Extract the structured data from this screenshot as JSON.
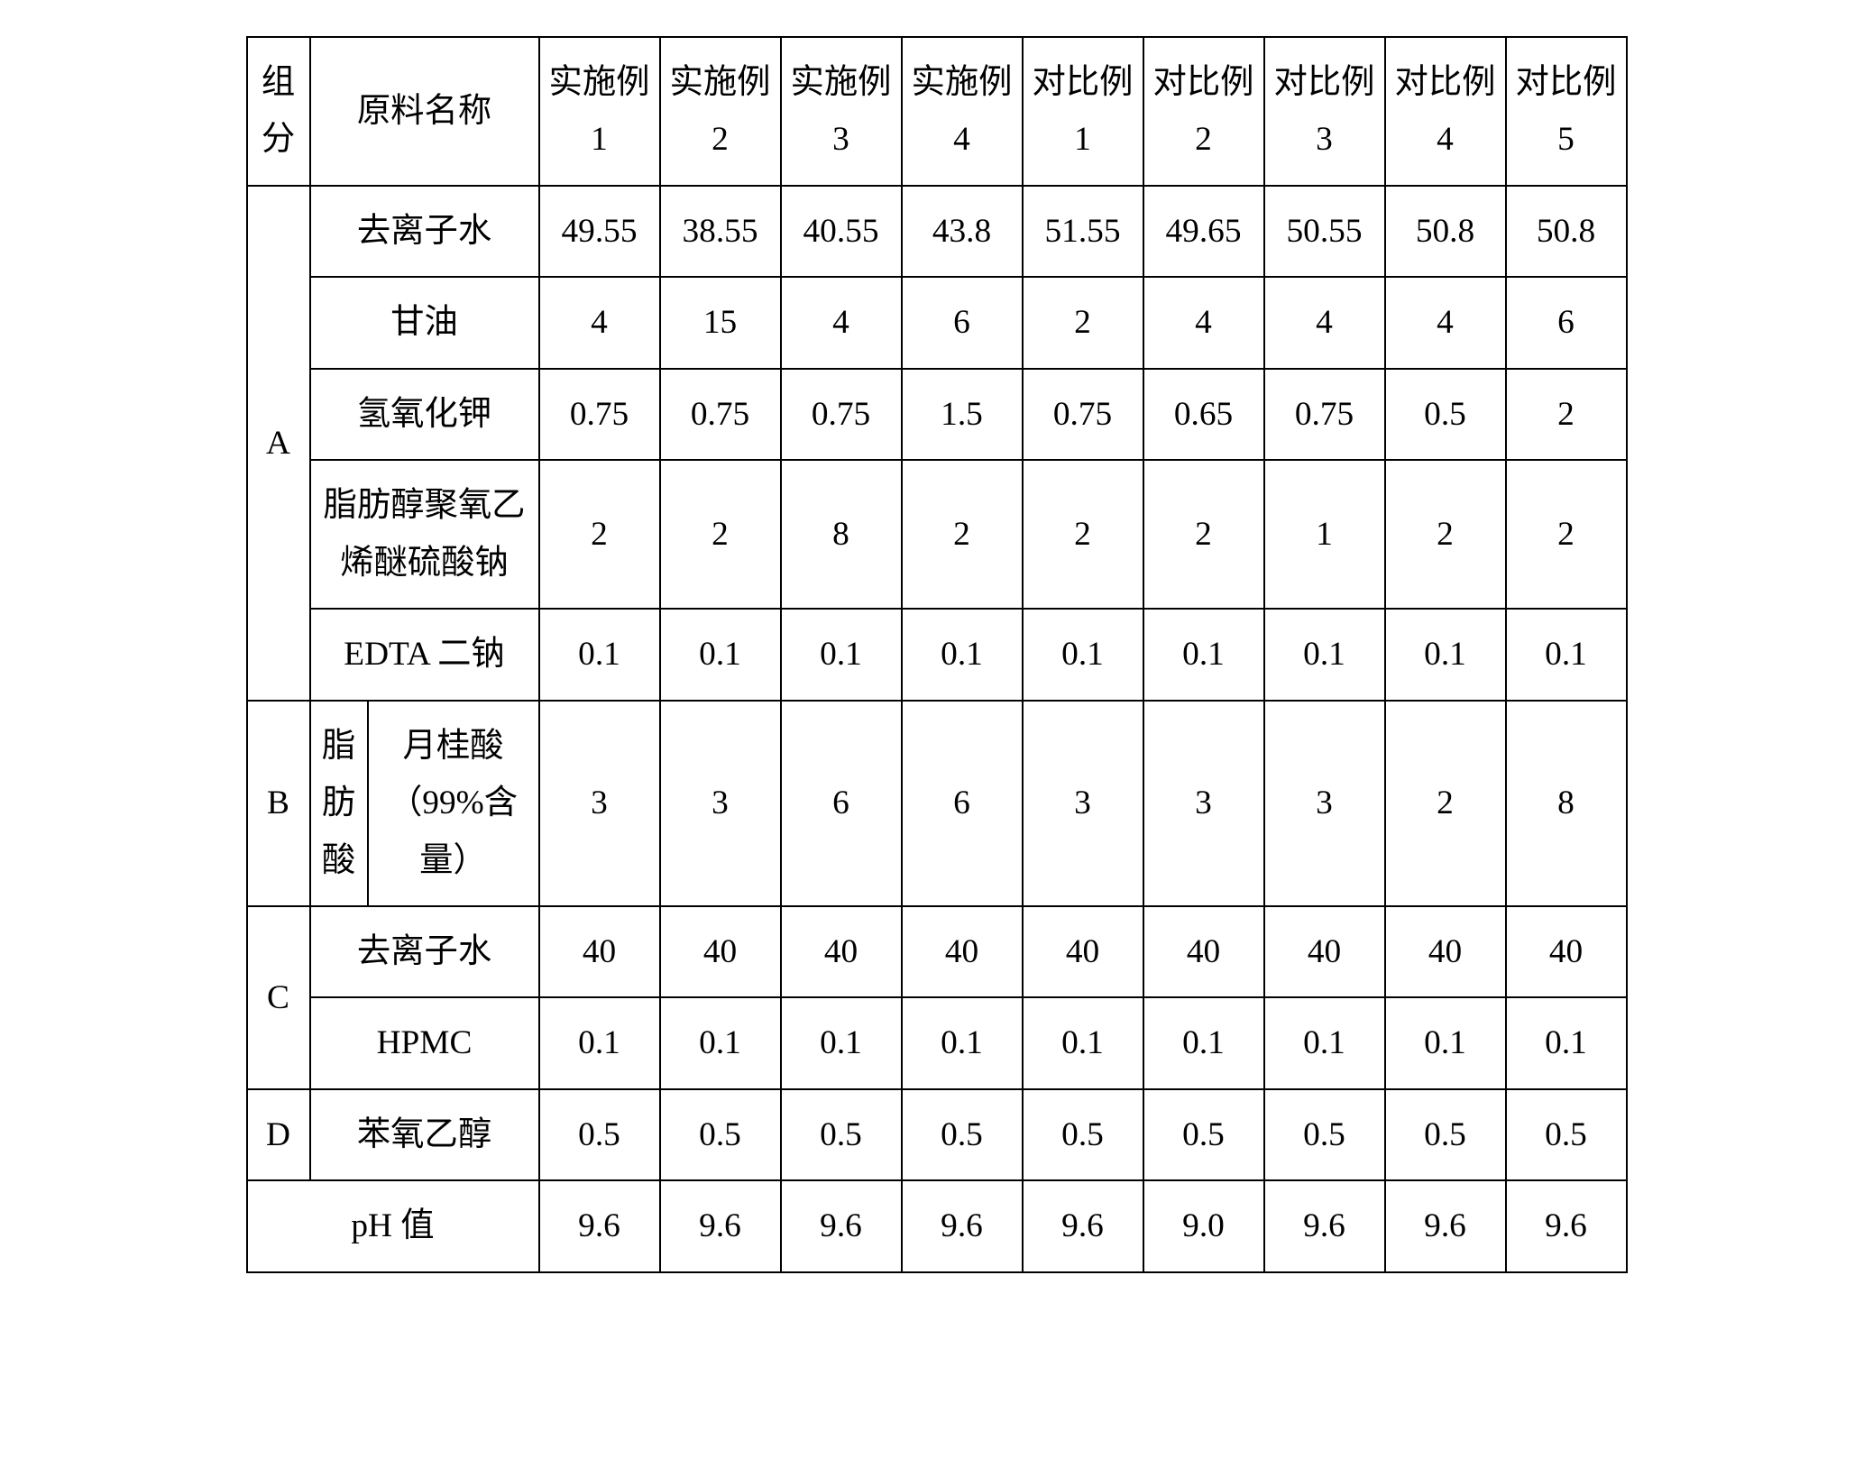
{
  "font": {
    "size_pt": 28,
    "line_height": 1.7,
    "color": "#000000"
  },
  "border_color": "#000000",
  "background_color": "#ffffff",
  "header": {
    "group": "组分",
    "ingredient": "原料名称",
    "cols": [
      "实施例 1",
      "实施例 2",
      "实施例 3",
      "实施例 4",
      "对比例 1",
      "对比例 2",
      "对比例 3",
      "对比例 4",
      "对比例 5"
    ]
  },
  "rows": [
    {
      "group": "A",
      "ingredient": "去离子水",
      "values": [
        "49.55",
        "38.55",
        "40.55",
        "43.8",
        "51.55",
        "49.65",
        "50.55",
        "50.8",
        "50.8"
      ]
    },
    {
      "group": "A",
      "ingredient": "甘油",
      "values": [
        "4",
        "15",
        "4",
        "6",
        "2",
        "4",
        "4",
        "4",
        "6"
      ]
    },
    {
      "group": "A",
      "ingredient": "氢氧化钾",
      "values": [
        "0.75",
        "0.75",
        "0.75",
        "1.5",
        "0.75",
        "0.65",
        "0.75",
        "0.5",
        "2"
      ]
    },
    {
      "group": "A",
      "ingredient": "脂肪醇聚氧乙烯醚硫酸钠",
      "values": [
        "2",
        "2",
        "8",
        "2",
        "2",
        "2",
        "1",
        "2",
        "2"
      ]
    },
    {
      "group": "A",
      "ingredient": "EDTA 二钠",
      "values": [
        "0.1",
        "0.1",
        "0.1",
        "0.1",
        "0.1",
        "0.1",
        "0.1",
        "0.1",
        "0.1"
      ]
    },
    {
      "group": "B",
      "sublabel": "脂肪酸",
      "ingredient": "月桂酸（99%含量）",
      "values": [
        "3",
        "3",
        "6",
        "6",
        "3",
        "3",
        "3",
        "2",
        "8"
      ]
    },
    {
      "group": "C",
      "ingredient": "去离子水",
      "values": [
        "40",
        "40",
        "40",
        "40",
        "40",
        "40",
        "40",
        "40",
        "40"
      ]
    },
    {
      "group": "C",
      "ingredient": "HPMC",
      "values": [
        "0.1",
        "0.1",
        "0.1",
        "0.1",
        "0.1",
        "0.1",
        "0.1",
        "0.1",
        "0.1"
      ]
    },
    {
      "group": "D",
      "ingredient": "苯氧乙醇",
      "values": [
        "0.5",
        "0.5",
        "0.5",
        "0.5",
        "0.5",
        "0.5",
        "0.5",
        "0.5",
        "0.5"
      ]
    }
  ],
  "footer": {
    "label": "pH 值",
    "values": [
      "9.6",
      "9.6",
      "9.6",
      "9.6",
      "9.6",
      "9.0",
      "9.6",
      "9.6",
      "9.6"
    ]
  }
}
